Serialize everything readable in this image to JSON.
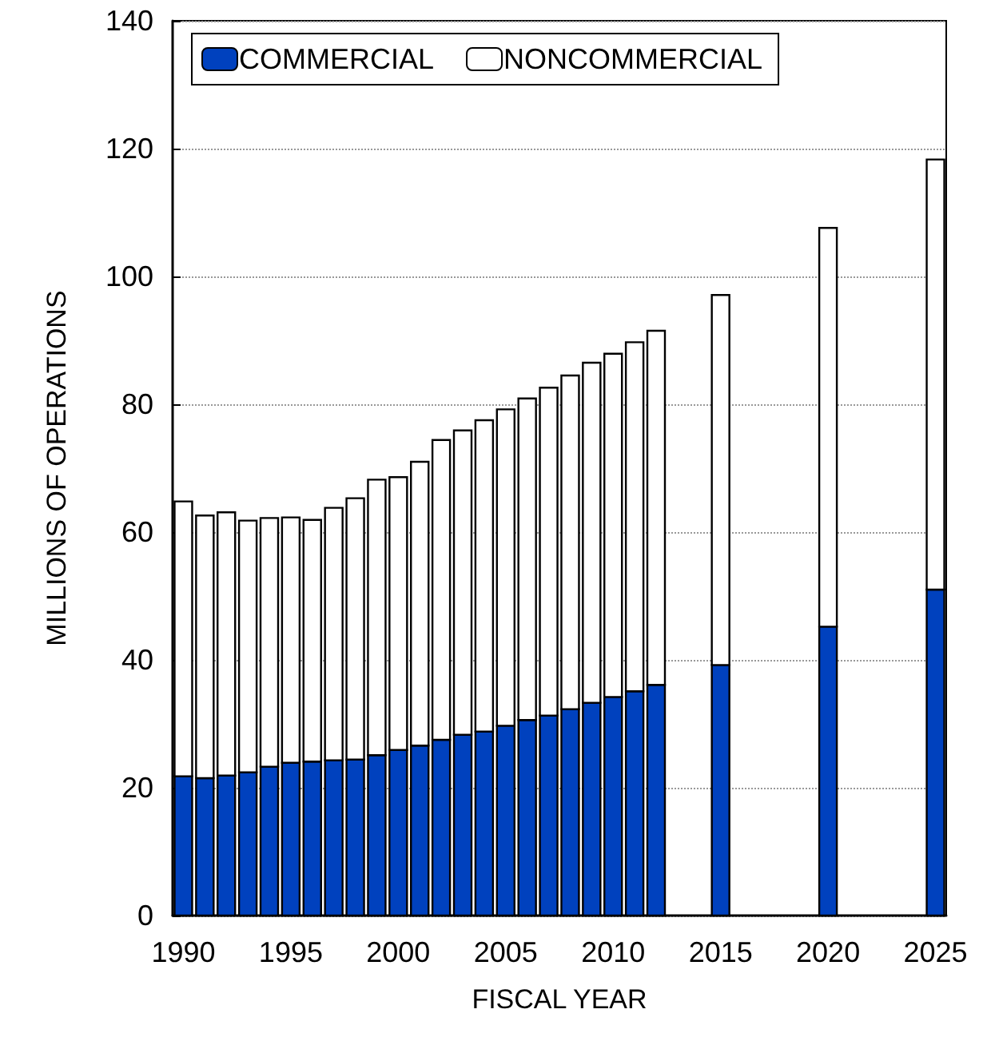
{
  "chart_data": {
    "type": "bar",
    "stacked": true,
    "xlabel": "FISCAL YEAR",
    "ylabel": "MILLIONS OF OPERATIONS",
    "x": [
      1990,
      1991,
      1992,
      1993,
      1994,
      1995,
      1996,
      1997,
      1998,
      1999,
      2000,
      2001,
      2002,
      2003,
      2004,
      2005,
      2006,
      2007,
      2008,
      2009,
      2010,
      2011,
      2012,
      2015,
      2020,
      2025
    ],
    "series": [
      {
        "name": "COMMERCIAL",
        "color": "#0041be",
        "values": [
          21.8,
          21.5,
          21.9,
          22.4,
          23.3,
          23.9,
          24.1,
          24.3,
          24.4,
          25.1,
          25.9,
          26.6,
          27.5,
          28.3,
          28.8,
          29.7,
          30.6,
          31.3,
          32.3,
          33.3,
          34.2,
          35.1,
          36.1,
          39.2,
          45.2,
          51.0
        ]
      },
      {
        "name": "NONCOMMERCIAL",
        "color": "#ffffff",
        "values": [
          43.0,
          41.1,
          41.2,
          39.4,
          38.9,
          38.4,
          37.8,
          39.5,
          40.9,
          43.1,
          42.7,
          44.4,
          46.9,
          47.6,
          48.7,
          49.5,
          50.3,
          51.3,
          52.2,
          53.2,
          53.7,
          54.6,
          55.4,
          57.9,
          62.4,
          67.3
        ]
      }
    ],
    "xlim": [
      1989.5,
      2025.5
    ],
    "xticks": [
      1990,
      1995,
      2000,
      2005,
      2010,
      2015,
      2020,
      2025
    ],
    "ylim": [
      0,
      140
    ],
    "yticks": [
      0,
      20,
      40,
      60,
      80,
      100,
      120,
      140
    ],
    "grid": "y",
    "legend": "top"
  }
}
